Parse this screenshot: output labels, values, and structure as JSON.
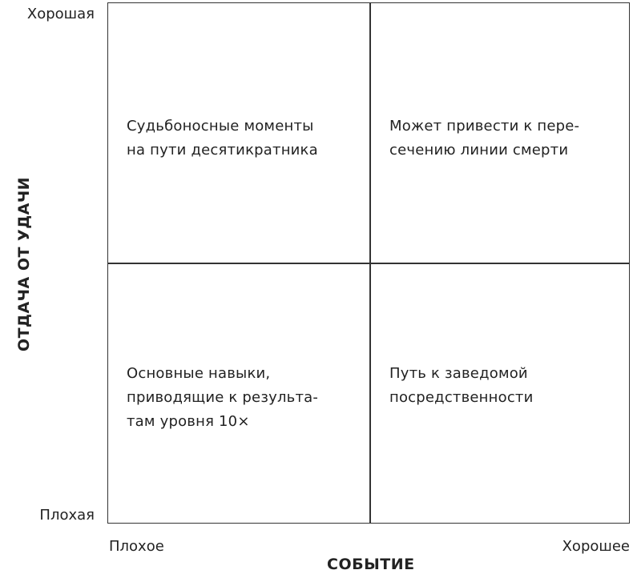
{
  "y_axis": {
    "title": "ОТДАЧА ОТ УДАЧИ",
    "top_label": "Хорошая",
    "bottom_label": "Плохая"
  },
  "x_axis": {
    "title": "СОБЫТИЕ",
    "left_label": "Плохое",
    "right_label": "Хорошее"
  },
  "quadrants": {
    "top_left": [
      "Судьбоносные моменты",
      "на пути десятикратника"
    ],
    "top_right": [
      "Может привести к пере-",
      "сечению линии смерти"
    ],
    "bottom_left": [
      "Основные навыки,",
      "приводящие к результа-",
      "там уровня 10×"
    ],
    "bottom_right": [
      "Путь к заведомой",
      "посредственности"
    ]
  }
}
